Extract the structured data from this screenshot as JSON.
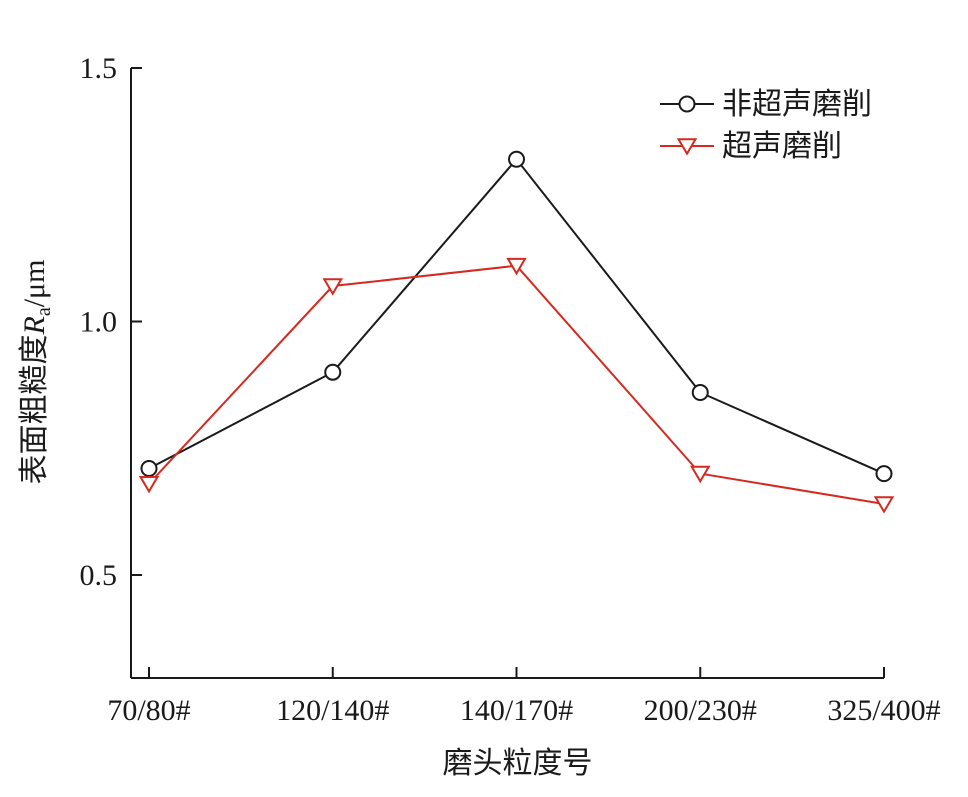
{
  "chart_data": {
    "type": "line",
    "categories": [
      "70/80#",
      "120/140#",
      "140/170#",
      "200/230#",
      "325/400#"
    ],
    "series": [
      {
        "name": "非超声磨削",
        "values": [
          0.71,
          0.9,
          1.32,
          0.86,
          0.7
        ],
        "color": "#1a1a1a",
        "marker": "circle"
      },
      {
        "name": "超声磨削",
        "values": [
          0.68,
          1.07,
          1.11,
          0.7,
          0.64
        ],
        "color": "#d42a20",
        "marker": "triangle-down"
      }
    ],
    "xlabel": "磨头粒度号",
    "ylabel": {
      "prefix": "表面粗糙度",
      "symbol": "R",
      "subscript": "a",
      "unit": "/μm"
    },
    "ylim": [
      0.3,
      1.5
    ],
    "yticks": [
      0.5,
      1.0,
      1.5
    ],
    "ytick_labels": [
      "0.5",
      "1.0",
      "1.5"
    ],
    "grid": false,
    "legend_position": "top-right"
  }
}
